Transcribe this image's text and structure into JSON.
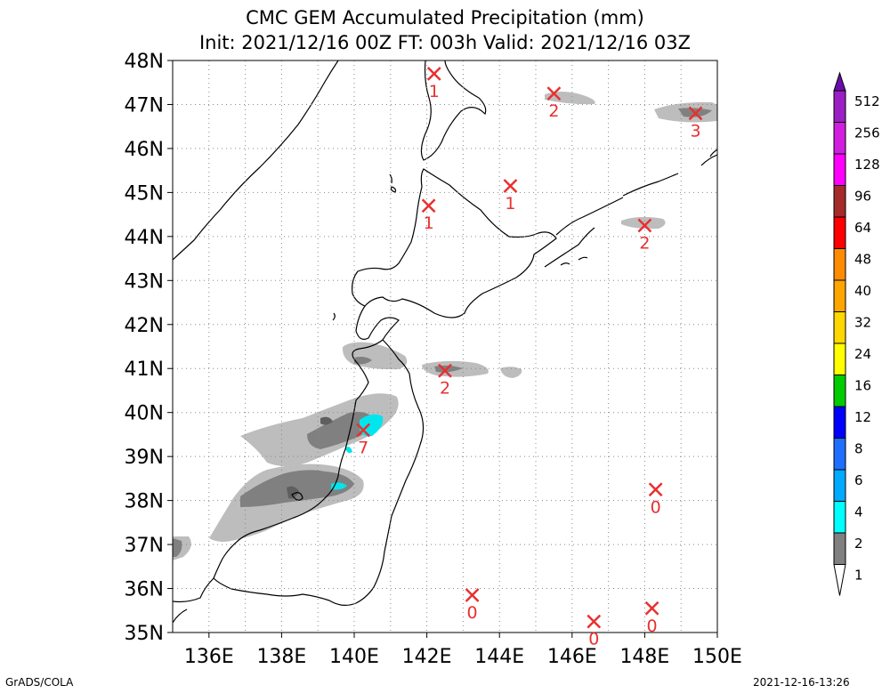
{
  "title": {
    "line1": "CMC GEM Accumulated Precipitation (mm)",
    "line2": "Init: 2021/12/16 00Z  FT: 003h  Valid: 2021/12/16 03Z"
  },
  "axes": {
    "lat_labels": [
      "48N",
      "47N",
      "46N",
      "45N",
      "44N",
      "43N",
      "42N",
      "41N",
      "40N",
      "39N",
      "38N",
      "37N",
      "36N",
      "35N"
    ],
    "lon_labels": [
      "136E",
      "138E",
      "140E",
      "142E",
      "144E",
      "146E",
      "148E",
      "150E"
    ],
    "lat_range": [
      35,
      48
    ],
    "lon_range": [
      135,
      150
    ],
    "grid": "dotted"
  },
  "stations": [
    {
      "lon": 142.2,
      "lat": 47.7,
      "value": "1"
    },
    {
      "lon": 145.5,
      "lat": 47.25,
      "value": "2"
    },
    {
      "lon": 149.4,
      "lat": 46.8,
      "value": "3"
    },
    {
      "lon": 144.3,
      "lat": 45.15,
      "value": "1"
    },
    {
      "lon": 142.05,
      "lat": 44.7,
      "value": "1"
    },
    {
      "lon": 148.0,
      "lat": 44.25,
      "value": "2"
    },
    {
      "lon": 142.5,
      "lat": 40.95,
      "value": "2"
    },
    {
      "lon": 140.25,
      "lat": 39.6,
      "value": "7"
    },
    {
      "lon": 148.3,
      "lat": 38.25,
      "value": "0"
    },
    {
      "lon": 143.25,
      "lat": 35.85,
      "value": "0"
    },
    {
      "lon": 146.6,
      "lat": 35.25,
      "value": "0"
    },
    {
      "lon": 148.2,
      "lat": 35.55,
      "value": "0"
    }
  ],
  "colorbar": {
    "labels": [
      "512",
      "256",
      "128",
      "96",
      "64",
      "48",
      "40",
      "32",
      "24",
      "16",
      "12",
      "8",
      "6",
      "4",
      "2",
      "1"
    ],
    "colors": [
      "#6a0dad",
      "#9b1fc4",
      "#d21ee0",
      "#ff00ff",
      "#a52a2a",
      "#ff0000",
      "#ff8c00",
      "#ffa500",
      "#ffd700",
      "#ffff00",
      "#00cc00",
      "#0000ff",
      "#1e6fff",
      "#00aaff",
      "#00ffff",
      "#808080",
      "#c0c0c0"
    ]
  },
  "colors": {
    "marker": "#e83030",
    "light_precip": "#bdbdbd",
    "mid_precip": "#808080",
    "dark_precip": "#6a6a6a",
    "cyan_precip": "#00e5ee"
  },
  "footer": {
    "left": "GrADS/COLA",
    "right": "2021-12-16-13:26"
  }
}
